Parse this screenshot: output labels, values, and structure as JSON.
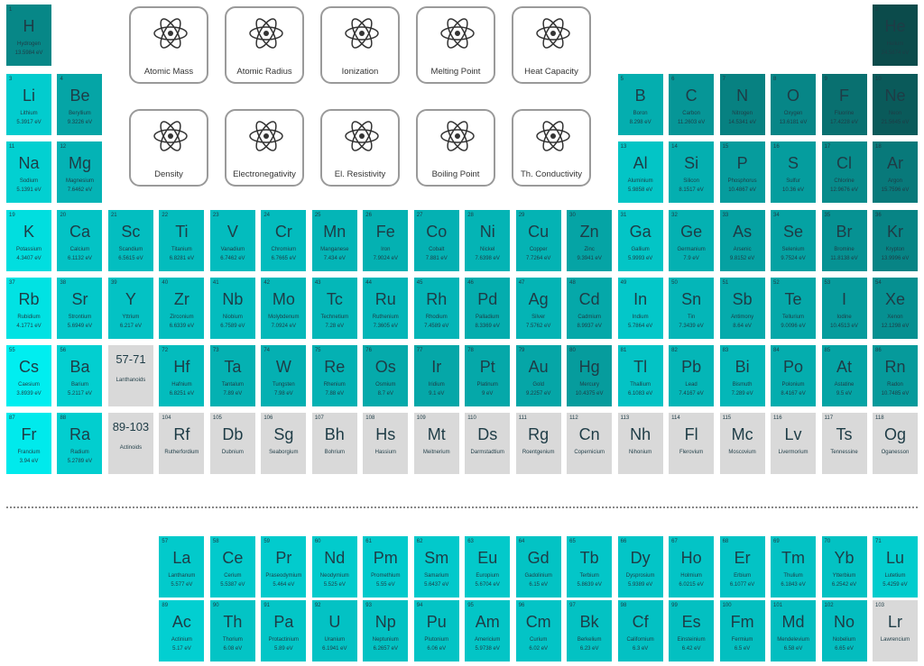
{
  "buttons": [
    "Atomic Mass",
    "Atomic Radius",
    "Ionization",
    "Melting Point",
    "Heat Capacity",
    "Density",
    "Electronegativity",
    "El. Resistivity",
    "Boiling Point",
    "Th. Conductivity"
  ],
  "color_scale": {
    "low": "#00eef0",
    "high": "#0b4b4b",
    "none": "#d9d9d9"
  },
  "placeholders": [
    {
      "range": "57-71",
      "name": "Lanthanoids"
    },
    {
      "range": "89-103",
      "name": "Actinoids"
    }
  ],
  "elements": [
    {
      "number": 1,
      "symbol": "H",
      "name": "Hydrogen",
      "ionization": "13.5984 eV"
    },
    {
      "number": 2,
      "symbol": "He",
      "name": "Helium",
      "ionization": "24.5874 eV"
    },
    {
      "number": 3,
      "symbol": "Li",
      "name": "Lithium",
      "ionization": "5.3917 eV"
    },
    {
      "number": 4,
      "symbol": "Be",
      "name": "Beryllium",
      "ionization": "9.3226 eV"
    },
    {
      "number": 5,
      "symbol": "B",
      "name": "Boron",
      "ionization": "8.298 eV"
    },
    {
      "number": 6,
      "symbol": "C",
      "name": "Carbon",
      "ionization": "11.2603 eV"
    },
    {
      "number": 7,
      "symbol": "N",
      "name": "Nitrogen",
      "ionization": "14.5341 eV"
    },
    {
      "number": 8,
      "symbol": "O",
      "name": "Oxygen",
      "ionization": "13.6181 eV"
    },
    {
      "number": 9,
      "symbol": "F",
      "name": "Fluorine",
      "ionization": "17.4228 eV"
    },
    {
      "number": 10,
      "symbol": "Ne",
      "name": "Neon",
      "ionization": "21.5645 eV"
    },
    {
      "number": 11,
      "symbol": "Na",
      "name": "Sodium",
      "ionization": "5.1391 eV"
    },
    {
      "number": 12,
      "symbol": "Mg",
      "name": "Magnesium",
      "ionization": "7.6462 eV"
    },
    {
      "number": 13,
      "symbol": "Al",
      "name": "Aluminium",
      "ionization": "5.9858 eV"
    },
    {
      "number": 14,
      "symbol": "Si",
      "name": "Silicon",
      "ionization": "8.1517 eV"
    },
    {
      "number": 15,
      "symbol": "P",
      "name": "Phosphorus",
      "ionization": "10.4867 eV"
    },
    {
      "number": 16,
      "symbol": "S",
      "name": "Sulfur",
      "ionization": "10.36 eV"
    },
    {
      "number": 17,
      "symbol": "Cl",
      "name": "Chlorine",
      "ionization": "12.9676 eV"
    },
    {
      "number": 18,
      "symbol": "Ar",
      "name": "Argon",
      "ionization": "15.7596 eV"
    },
    {
      "number": 19,
      "symbol": "K",
      "name": "Potassium",
      "ionization": "4.3407 eV"
    },
    {
      "number": 20,
      "symbol": "Ca",
      "name": "Calcium",
      "ionization": "6.1132 eV"
    },
    {
      "number": 21,
      "symbol": "Sc",
      "name": "Scandium",
      "ionization": "6.5615 eV"
    },
    {
      "number": 22,
      "symbol": "Ti",
      "name": "Titanium",
      "ionization": "6.8281 eV"
    },
    {
      "number": 23,
      "symbol": "V",
      "name": "Vanadium",
      "ionization": "6.7462 eV"
    },
    {
      "number": 24,
      "symbol": "Cr",
      "name": "Chromium",
      "ionization": "6.7665 eV"
    },
    {
      "number": 25,
      "symbol": "Mn",
      "name": "Manganese",
      "ionization": "7.434 eV"
    },
    {
      "number": 26,
      "symbol": "Fe",
      "name": "Iron",
      "ionization": "7.9024 eV"
    },
    {
      "number": 27,
      "symbol": "Co",
      "name": "Cobalt",
      "ionization": "7.881 eV"
    },
    {
      "number": 28,
      "symbol": "Ni",
      "name": "Nickel",
      "ionization": "7.6398 eV"
    },
    {
      "number": 29,
      "symbol": "Cu",
      "name": "Copper",
      "ionization": "7.7264 eV"
    },
    {
      "number": 30,
      "symbol": "Zn",
      "name": "Zinc",
      "ionization": "9.3941 eV"
    },
    {
      "number": 31,
      "symbol": "Ga",
      "name": "Gallium",
      "ionization": "5.9993 eV"
    },
    {
      "number": 32,
      "symbol": "Ge",
      "name": "Germanium",
      "ionization": "7.9 eV"
    },
    {
      "number": 33,
      "symbol": "As",
      "name": "Arsenic",
      "ionization": "9.8152 eV"
    },
    {
      "number": 34,
      "symbol": "Se",
      "name": "Selenium",
      "ionization": "9.7524 eV"
    },
    {
      "number": 35,
      "symbol": "Br",
      "name": "Bromine",
      "ionization": "11.8138 eV"
    },
    {
      "number": 36,
      "symbol": "Kr",
      "name": "Krypton",
      "ionization": "13.9996 eV"
    },
    {
      "number": 37,
      "symbol": "Rb",
      "name": "Rubidium",
      "ionization": "4.1771 eV"
    },
    {
      "number": 38,
      "symbol": "Sr",
      "name": "Strontium",
      "ionization": "5.6949 eV"
    },
    {
      "number": 39,
      "symbol": "Y",
      "name": "Yttrium",
      "ionization": "6.217 eV"
    },
    {
      "number": 40,
      "symbol": "Zr",
      "name": "Zirconium",
      "ionization": "6.6339 eV"
    },
    {
      "number": 41,
      "symbol": "Nb",
      "name": "Niobium",
      "ionization": "6.7589 eV"
    },
    {
      "number": 42,
      "symbol": "Mo",
      "name": "Molybdenum",
      "ionization": "7.0924 eV"
    },
    {
      "number": 43,
      "symbol": "Tc",
      "name": "Technetium",
      "ionization": "7.28 eV"
    },
    {
      "number": 44,
      "symbol": "Ru",
      "name": "Ruthenium",
      "ionization": "7.3605 eV"
    },
    {
      "number": 45,
      "symbol": "Rh",
      "name": "Rhodium",
      "ionization": "7.4589 eV"
    },
    {
      "number": 46,
      "symbol": "Pd",
      "name": "Palladium",
      "ionization": "8.3369 eV"
    },
    {
      "number": 47,
      "symbol": "Ag",
      "name": "Silver",
      "ionization": "7.5762 eV"
    },
    {
      "number": 48,
      "symbol": "Cd",
      "name": "Cadmium",
      "ionization": "8.9937 eV"
    },
    {
      "number": 49,
      "symbol": "In",
      "name": "Indium",
      "ionization": "5.7864 eV"
    },
    {
      "number": 50,
      "symbol": "Sn",
      "name": "Tin",
      "ionization": "7.3439 eV"
    },
    {
      "number": 51,
      "symbol": "Sb",
      "name": "Antimony",
      "ionization": "8.64 eV"
    },
    {
      "number": 52,
      "symbol": "Te",
      "name": "Tellurium",
      "ionization": "9.0096 eV"
    },
    {
      "number": 53,
      "symbol": "I",
      "name": "Iodine",
      "ionization": "10.4513 eV"
    },
    {
      "number": 54,
      "symbol": "Xe",
      "name": "Xenon",
      "ionization": "12.1298 eV"
    },
    {
      "number": 55,
      "symbol": "Cs",
      "name": "Caesium",
      "ionization": "3.8939 eV"
    },
    {
      "number": 56,
      "symbol": "Ba",
      "name": "Barium",
      "ionization": "5.2117 eV"
    },
    {
      "number": 57,
      "symbol": "La",
      "name": "Lanthanum",
      "ionization": "5.577 eV"
    },
    {
      "number": 58,
      "symbol": "Ce",
      "name": "Cerium",
      "ionization": "5.5387 eV"
    },
    {
      "number": 59,
      "symbol": "Pr",
      "name": "Praseodymium",
      "ionization": "5.464 eV"
    },
    {
      "number": 60,
      "symbol": "Nd",
      "name": "Neodymium",
      "ionization": "5.525 eV"
    },
    {
      "number": 61,
      "symbol": "Pm",
      "name": "Promethium",
      "ionization": "5.55 eV"
    },
    {
      "number": 62,
      "symbol": "Sm",
      "name": "Samarium",
      "ionization": "5.6437 eV"
    },
    {
      "number": 63,
      "symbol": "Eu",
      "name": "Europium",
      "ionization": "5.6704 eV"
    },
    {
      "number": 64,
      "symbol": "Gd",
      "name": "Gadolinium",
      "ionization": "6.15 eV"
    },
    {
      "number": 65,
      "symbol": "Tb",
      "name": "Terbium",
      "ionization": "5.8639 eV"
    },
    {
      "number": 66,
      "symbol": "Dy",
      "name": "Dysprosium",
      "ionization": "5.9389 eV"
    },
    {
      "number": 67,
      "symbol": "Ho",
      "name": "Holmium",
      "ionization": "6.0215 eV"
    },
    {
      "number": 68,
      "symbol": "Er",
      "name": "Erbium",
      "ionization": "6.1077 eV"
    },
    {
      "number": 69,
      "symbol": "Tm",
      "name": "Thulium",
      "ionization": "6.1843 eV"
    },
    {
      "number": 70,
      "symbol": "Yb",
      "name": "Ytterbium",
      "ionization": "6.2542 eV"
    },
    {
      "number": 71,
      "symbol": "Lu",
      "name": "Lutetium",
      "ionization": "5.4259 eV"
    },
    {
      "number": 72,
      "symbol": "Hf",
      "name": "Hafnium",
      "ionization": "6.8251 eV"
    },
    {
      "number": 73,
      "symbol": "Ta",
      "name": "Tantalum",
      "ionization": "7.89 eV"
    },
    {
      "number": 74,
      "symbol": "W",
      "name": "Tungsten",
      "ionization": "7.98 eV"
    },
    {
      "number": 75,
      "symbol": "Re",
      "name": "Rhenium",
      "ionization": "7.88 eV"
    },
    {
      "number": 76,
      "symbol": "Os",
      "name": "Osmium",
      "ionization": "8.7 eV"
    },
    {
      "number": 77,
      "symbol": "Ir",
      "name": "Iridium",
      "ionization": "9.1 eV"
    },
    {
      "number": 78,
      "symbol": "Pt",
      "name": "Platinum",
      "ionization": "9 eV"
    },
    {
      "number": 79,
      "symbol": "Au",
      "name": "Gold",
      "ionization": "9.2257 eV"
    },
    {
      "number": 80,
      "symbol": "Hg",
      "name": "Mercury",
      "ionization": "10.4375 eV"
    },
    {
      "number": 81,
      "symbol": "Tl",
      "name": "Thallium",
      "ionization": "6.1083 eV"
    },
    {
      "number": 82,
      "symbol": "Pb",
      "name": "Lead",
      "ionization": "7.4167 eV"
    },
    {
      "number": 83,
      "symbol": "Bi",
      "name": "Bismuth",
      "ionization": "7.289 eV"
    },
    {
      "number": 84,
      "symbol": "Po",
      "name": "Polonium",
      "ionization": "8.4167 eV"
    },
    {
      "number": 85,
      "symbol": "At",
      "name": "Astatine",
      "ionization": "9.5 eV"
    },
    {
      "number": 86,
      "symbol": "Rn",
      "name": "Radon",
      "ionization": "10.7485 eV"
    },
    {
      "number": 87,
      "symbol": "Fr",
      "name": "Francium",
      "ionization": "3.94 eV"
    },
    {
      "number": 88,
      "symbol": "Ra",
      "name": "Radium",
      "ionization": "5.2789 eV"
    },
    {
      "number": 89,
      "symbol": "Ac",
      "name": "Actinium",
      "ionization": "5.17 eV"
    },
    {
      "number": 90,
      "symbol": "Th",
      "name": "Thorium",
      "ionization": "6.08 eV"
    },
    {
      "number": 91,
      "symbol": "Pa",
      "name": "Protactinium",
      "ionization": "5.89 eV"
    },
    {
      "number": 92,
      "symbol": "U",
      "name": "Uranium",
      "ionization": "6.1941 eV"
    },
    {
      "number": 93,
      "symbol": "Np",
      "name": "Neptunium",
      "ionization": "6.2657 eV"
    },
    {
      "number": 94,
      "symbol": "Pu",
      "name": "Plutonium",
      "ionization": "6.06 eV"
    },
    {
      "number": 95,
      "symbol": "Am",
      "name": "Americium",
      "ionization": "5.9738 eV"
    },
    {
      "number": 96,
      "symbol": "Cm",
      "name": "Curium",
      "ionization": "6.02 eV"
    },
    {
      "number": 97,
      "symbol": "Bk",
      "name": "Berkelium",
      "ionization": "6.23 eV"
    },
    {
      "number": 98,
      "symbol": "Cf",
      "name": "Californium",
      "ionization": "6.3 eV"
    },
    {
      "number": 99,
      "symbol": "Es",
      "name": "Einsteinium",
      "ionization": "6.42 eV"
    },
    {
      "number": 100,
      "symbol": "Fm",
      "name": "Fermium",
      "ionization": "6.5 eV"
    },
    {
      "number": 101,
      "symbol": "Md",
      "name": "Mendelevium",
      "ionization": "6.58 eV"
    },
    {
      "number": 102,
      "symbol": "No",
      "name": "Nobelium",
      "ionization": "6.65 eV"
    },
    {
      "number": 103,
      "symbol": "Lr",
      "name": "Lawrencium"
    },
    {
      "number": 104,
      "symbol": "Rf",
      "name": "Rutherfordium"
    },
    {
      "number": 105,
      "symbol": "Db",
      "name": "Dubnium"
    },
    {
      "number": 106,
      "symbol": "Sg",
      "name": "Seaborgium"
    },
    {
      "number": 107,
      "symbol": "Bh",
      "name": "Bohrium"
    },
    {
      "number": 108,
      "symbol": "Hs",
      "name": "Hassium"
    },
    {
      "number": 109,
      "symbol": "Mt",
      "name": "Meitnerium"
    },
    {
      "number": 110,
      "symbol": "Ds",
      "name": "Darmstadtium"
    },
    {
      "number": 111,
      "symbol": "Rg",
      "name": "Roentgenium"
    },
    {
      "number": 112,
      "symbol": "Cn",
      "name": "Copernicium"
    },
    {
      "number": 113,
      "symbol": "Nh",
      "name": "Nihonium"
    },
    {
      "number": 114,
      "symbol": "Fl",
      "name": "Flerovium"
    },
    {
      "number": 115,
      "symbol": "Mc",
      "name": "Moscovium"
    },
    {
      "number": 116,
      "symbol": "Lv",
      "name": "Livermorium"
    },
    {
      "number": 117,
      "symbol": "Ts",
      "name": "Tennessine"
    },
    {
      "number": 118,
      "symbol": "Og",
      "name": "Oganesson"
    }
  ]
}
